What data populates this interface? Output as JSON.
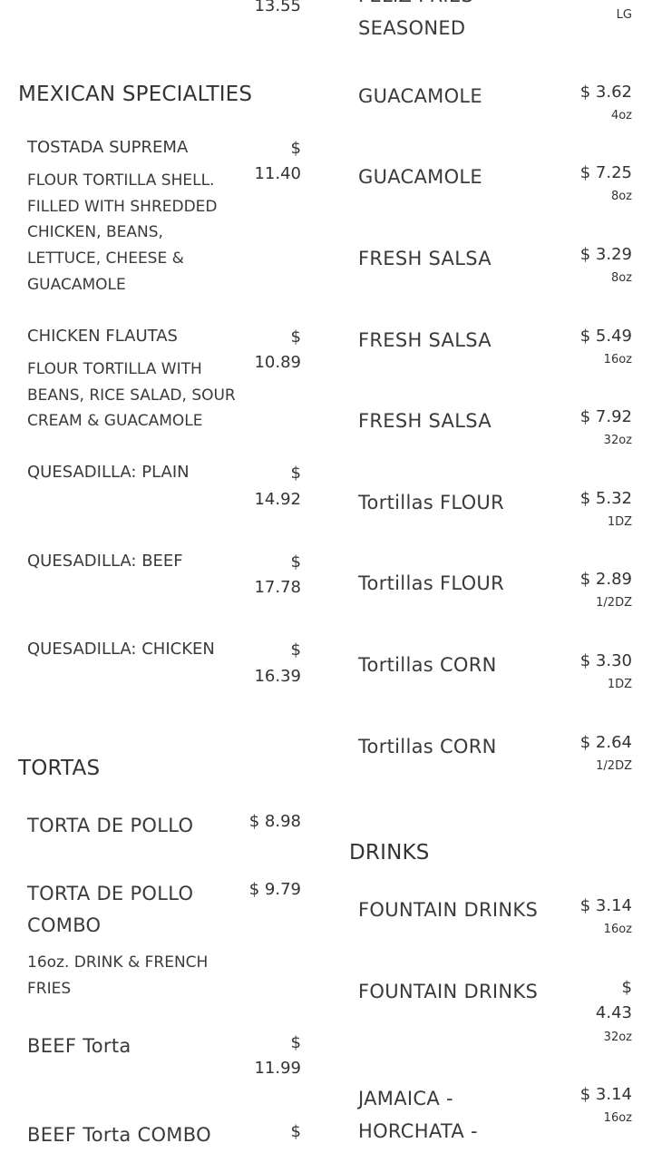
{
  "left": {
    "top_partial_price": "13.55",
    "sections": [
      {
        "title": "MEXICAN SPECIALTIES",
        "items": [
          {
            "name": "TOSTADA SUPREMA",
            "price": "$ 11.40",
            "description": [
              "FLOUR TORTILLA SHELL.",
              "FILLED WITH SHREDDED",
              "CHICKEN, BEANS,",
              "LETTUCE, CHEESE &",
              "GUACAMOLE"
            ]
          },
          {
            "name": "CHICKEN FLAUTAS",
            "price": "$ 10.89",
            "description": [
              "FLOUR TORTILLA WITH",
              "BEANS, RICE SALAD, SOUR",
              "CREAM & GUACAMOLE"
            ]
          },
          {
            "name": "QUESADILLA: PLAIN",
            "price": "$ 14.92",
            "description": []
          },
          {
            "name": "QUESADILLA: BEEF",
            "price": "$ 17.78",
            "description": []
          },
          {
            "name": "QUESADILLA: CHICKEN",
            "price": "$ 16.39",
            "description": []
          }
        ]
      },
      {
        "title": "TORTAS",
        "items": [
          {
            "name": "TORTA DE POLLO",
            "price": "$ 8.98",
            "description": []
          },
          {
            "name": "TORTA DE POLLO COMBO",
            "price": "$ 9.79",
            "description": [
              "16oz. DRINK & FRENCH",
              "FRIES"
            ]
          },
          {
            "name": "BEEF Torta",
            "price": "$ 11.99",
            "description": []
          },
          {
            "name": "BEEF Torta COMBO",
            "price": "$",
            "description": []
          }
        ]
      }
    ]
  },
  "right": {
    "top_item": {
      "name": "FELIZ FRIES SEASONED",
      "size": "LG"
    },
    "items": [
      {
        "name": "GUACAMOLE",
        "price": "$ 3.62",
        "size": "4oz"
      },
      {
        "name": "GUACAMOLE",
        "price": "$ 7.25",
        "size": "8oz"
      },
      {
        "name": "FRESH SALSA",
        "price": "$ 3.29",
        "size": "8oz"
      },
      {
        "name": "FRESH SALSA",
        "price": "$ 5.49",
        "size": "16oz"
      },
      {
        "name": "FRESH SALSA",
        "price": "$ 7.92",
        "size": "32oz"
      },
      {
        "name": "Tortillas FLOUR",
        "price": "$ 5.32",
        "size": "1DZ"
      },
      {
        "name": "Tortillas FLOUR",
        "price": "$ 2.89",
        "size": "1/2DZ"
      },
      {
        "name": "Tortillas CORN",
        "price": "$ 3.30",
        "size": "1DZ"
      },
      {
        "name": "Tortillas CORN",
        "price": "$ 2.64",
        "size": "1/2DZ"
      }
    ],
    "drinks": {
      "title": "DRINKS",
      "items": [
        {
          "name": "FOUNTAIN DRINKS",
          "price": "$ 3.14",
          "size": "16oz"
        },
        {
          "name": "FOUNTAIN DRINKS",
          "price": "$ 4.43",
          "size": "32oz"
        },
        {
          "name": "JAMAICA - HORCHATA -",
          "name_lines": [
            "JAMAICA -",
            "HORCHATA -"
          ],
          "price": "$ 3.14",
          "size": "16oz"
        }
      ]
    }
  }
}
